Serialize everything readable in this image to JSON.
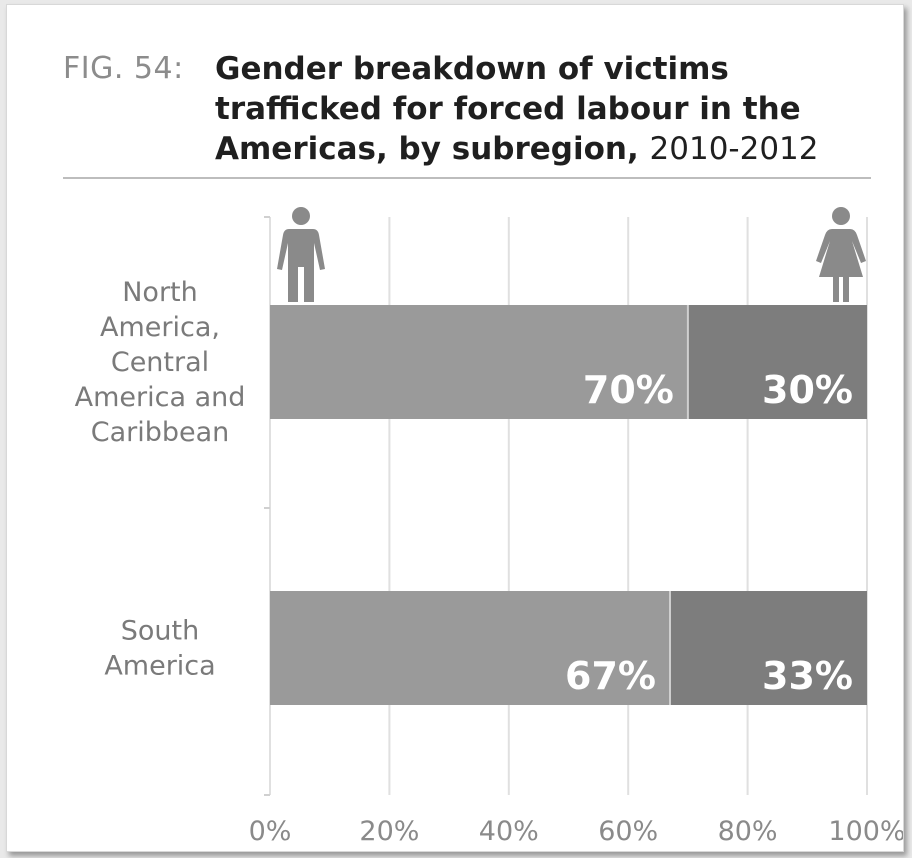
{
  "figure": {
    "label": "FIG. 54:",
    "title_bold": "Gender breakdown of victims trafficked for forced labour in the Americas, by subregion,",
    "title_years": "2010-2012"
  },
  "chart_data": {
    "type": "bar",
    "orientation": "horizontal",
    "stacked": true,
    "title": "Gender breakdown of victims trafficked for forced labour in the Americas, by subregion, 2010-2012",
    "categories": [
      [
        "North",
        "America,",
        "Central",
        "America and",
        "Caribbean"
      ],
      [
        "South",
        "America"
      ]
    ],
    "series": [
      {
        "legend_icon": "man-icon",
        "values": [
          70,
          67
        ],
        "labels": [
          "70%",
          "67%"
        ],
        "color": "#9a9a9a"
      },
      {
        "legend_icon": "woman-icon",
        "values": [
          30,
          33
        ],
        "labels": [
          "30%",
          "33%"
        ],
        "color": "#7d7d7d"
      }
    ],
    "xlim": [
      0,
      100
    ],
    "xticks": [
      "0%",
      "20%",
      "40%",
      "60%",
      "80%",
      "100%"
    ],
    "grid": true,
    "legend": "top icons"
  }
}
